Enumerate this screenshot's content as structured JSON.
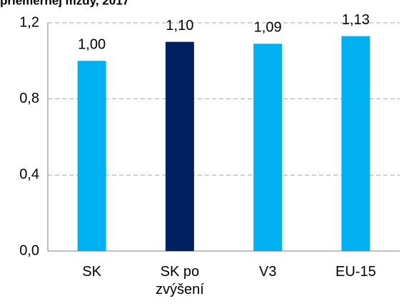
{
  "chart_data": {
    "type": "bar",
    "title": "priemernej mzdy, 2017",
    "categories": [
      "SK",
      "SK po zvýšení",
      "V3",
      "EU-15"
    ],
    "values": [
      1.0,
      1.1,
      1.09,
      1.13
    ],
    "value_labels": [
      "1,00",
      "1,10",
      "1,09",
      "1,13"
    ],
    "colors": [
      "#00b0f0",
      "#002060",
      "#00b0f0",
      "#00b0f0"
    ],
    "ylim": [
      0,
      1.2
    ],
    "yticks": [
      {
        "value": 0,
        "label": "0,0"
      },
      {
        "value": 0.4,
        "label": "0,4"
      },
      {
        "value": 0.8,
        "label": "0,8"
      },
      {
        "value": 1.2,
        "label": "1,2"
      }
    ],
    "grid": true
  }
}
